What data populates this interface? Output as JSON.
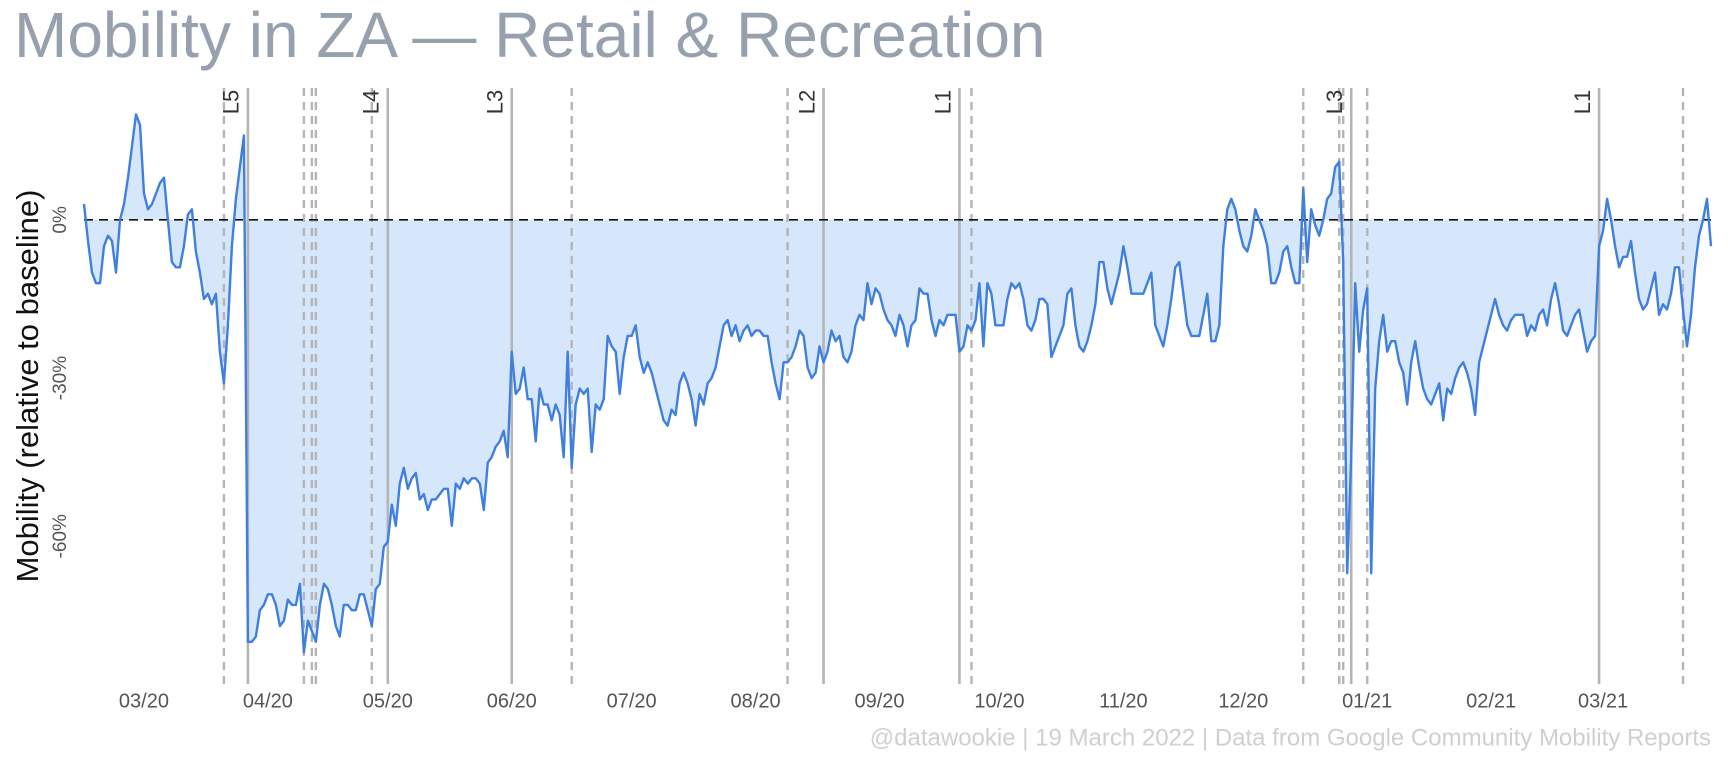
{
  "chart_data": {
    "type": "area-line",
    "title": "Mobility in ZA — Retail & Recreation",
    "ylabel": "Mobility (relative to baseline)",
    "footer": "@datawookie | 19 March 2022 | Data from Google Community Mobility Reports",
    "color": "#3f7fe0",
    "fill": "#d6e6fb",
    "xlim": [
      0,
      407
    ],
    "xticks": [
      {
        "value": 15,
        "label": "03/20"
      },
      {
        "value": 46,
        "label": "04/20"
      },
      {
        "value": 76,
        "label": "05/20"
      },
      {
        "value": 107,
        "label": "06/20"
      },
      {
        "value": 137,
        "label": "07/20"
      },
      {
        "value": 168,
        "label": "08/20"
      },
      {
        "value": 199,
        "label": "09/20"
      },
      {
        "value": 229,
        "label": "10/20"
      },
      {
        "value": 260,
        "label": "11/20"
      },
      {
        "value": 290,
        "label": "12/20"
      },
      {
        "value": 321,
        "label": "01/21"
      },
      {
        "value": 352,
        "label": "02/21"
      },
      {
        "value": 380,
        "label": "03/21"
      }
    ],
    "ylim": [
      -88,
      25
    ],
    "yticks": [
      {
        "value": -60,
        "label": "-60%"
      },
      {
        "value": -30,
        "label": "-30%"
      },
      {
        "value": 0,
        "label": "0%"
      }
    ],
    "baseline": 0,
    "level_changes": [
      {
        "x": 41,
        "label": "L5"
      },
      {
        "x": 76,
        "label": "L4"
      },
      {
        "x": 107,
        "label": "L3"
      },
      {
        "x": 185,
        "label": "L2"
      },
      {
        "x": 219,
        "label": "L1"
      },
      {
        "x": 317,
        "label": "L3"
      },
      {
        "x": 379,
        "label": "L1"
      }
    ],
    "dashed_lines": [
      35,
      55,
      57,
      58,
      72,
      122,
      176,
      222,
      305,
      314,
      315,
      321,
      400
    ],
    "x": [
      0,
      1,
      2,
      3,
      4,
      5,
      6,
      7,
      8,
      9,
      10,
      11,
      12,
      13,
      14,
      15,
      16,
      17,
      18,
      19,
      20,
      21,
      22,
      23,
      24,
      25,
      26,
      27,
      28,
      29,
      30,
      31,
      32,
      33,
      34,
      35,
      36,
      37,
      38,
      39,
      40,
      41,
      42,
      43,
      44,
      45,
      46,
      47,
      48,
      49,
      50,
      51,
      52,
      53,
      54,
      55,
      56,
      57,
      58,
      59,
      60,
      61,
      62,
      63,
      64,
      65,
      66,
      67,
      68,
      69,
      70,
      71,
      72,
      73,
      74,
      75,
      76,
      77,
      78,
      79,
      80,
      81,
      82,
      83,
      84,
      85,
      86,
      87,
      88,
      89,
      90,
      91,
      92,
      93,
      94,
      95,
      96,
      97,
      98,
      99,
      100,
      101,
      102,
      103,
      104,
      105,
      106,
      107,
      108,
      109,
      110,
      111,
      112,
      113,
      114,
      115,
      116,
      117,
      118,
      119,
      120,
      121,
      122,
      123,
      124,
      125,
      126,
      127,
      128,
      129,
      130,
      131,
      132,
      133,
      134,
      135,
      136,
      137,
      138,
      139,
      140,
      141,
      142,
      143,
      144,
      145,
      146,
      147,
      148,
      149,
      150,
      151,
      152,
      153,
      154,
      155,
      156,
      157,
      158,
      159,
      160,
      161,
      162,
      163,
      164,
      165,
      166,
      167,
      168,
      169,
      170,
      171,
      172,
      173,
      174,
      175,
      176,
      177,
      178,
      179,
      180,
      181,
      182,
      183,
      184,
      185,
      186,
      187,
      188,
      189,
      190,
      191,
      192,
      193,
      194,
      195,
      196,
      197,
      198,
      199,
      200,
      201,
      202,
      203,
      204,
      205,
      206,
      207,
      208,
      209,
      210,
      211,
      212,
      213,
      214,
      215,
      216,
      217,
      218,
      219,
      220,
      221,
      222,
      223,
      224,
      225,
      226,
      227,
      228,
      229,
      230,
      231,
      232,
      233,
      234,
      235,
      236,
      237,
      238,
      239,
      240,
      241,
      242,
      243,
      244,
      245,
      246,
      247,
      248,
      249,
      250,
      251,
      252,
      253,
      254,
      255,
      256,
      257,
      258,
      259,
      260,
      261,
      262,
      263,
      264,
      265,
      266,
      267,
      268,
      269,
      270,
      271,
      272,
      273,
      274,
      275,
      276,
      277,
      278,
      279,
      280,
      281,
      282,
      283,
      284,
      285,
      286,
      287,
      288,
      289,
      290,
      291,
      292,
      293,
      294,
      295,
      296,
      297,
      298,
      299,
      300,
      301,
      302,
      303,
      304,
      305,
      306,
      307,
      308,
      309,
      310,
      311,
      312,
      313,
      314,
      315,
      316,
      317,
      318,
      319,
      320,
      321,
      322,
      323,
      324,
      325,
      326,
      327,
      328,
      329,
      330,
      331,
      332,
      333,
      334,
      335,
      336,
      337,
      338,
      339,
      340,
      341,
      342,
      343,
      344,
      345,
      346,
      347,
      348,
      349,
      350,
      351,
      352,
      353,
      354,
      355,
      356,
      357,
      358,
      359,
      360,
      361,
      362,
      363,
      364,
      365,
      366,
      367,
      368,
      369,
      370,
      371,
      372,
      373,
      374,
      375,
      376,
      377,
      378,
      379,
      380,
      381,
      382,
      383,
      384,
      385,
      386,
      387,
      388,
      389,
      390,
      391,
      392,
      393,
      394,
      395,
      396,
      397,
      398,
      399,
      400,
      401,
      402,
      403,
      404,
      405,
      406,
      407
    ],
    "values": [
      3,
      -4,
      -10,
      -12,
      -12,
      -5,
      -3,
      -4,
      -10,
      0,
      3,
      8,
      14,
      20,
      18,
      5,
      2,
      3,
      5,
      7,
      8,
      0,
      -8,
      -9,
      -9,
      -5,
      1,
      2,
      -6,
      -10,
      -15,
      -14,
      -16,
      -14,
      -25,
      -31,
      -20,
      -5,
      4,
      10,
      16,
      -80,
      -80,
      -79,
      -74,
      -73,
      -71,
      -71,
      -73,
      -77,
      -76,
      -72,
      -73,
      -73,
      -69,
      -82,
      -76,
      -78,
      -80,
      -73,
      -69,
      -70,
      -73,
      -77,
      -79,
      -73,
      -73,
      -74,
      -74,
      -71,
      -71,
      -74,
      -77,
      -70,
      -69,
      -62,
      -61,
      -54,
      -58,
      -50,
      -47,
      -51,
      -49,
      -48,
      -53,
      -52,
      -55,
      -53,
      -53,
      -52,
      -51,
      -51,
      -58,
      -50,
      -51,
      -49,
      -50,
      -49,
      -49,
      -50,
      -55,
      -46,
      -45,
      -43,
      -42,
      -40,
      -45,
      -25,
      -33,
      -32,
      -28,
      -34,
      -34,
      -42,
      -32,
      -35,
      -35,
      -38,
      -35,
      -37,
      -45,
      -25,
      -47,
      -35,
      -32,
      -33,
      -32,
      -44,
      -35,
      -36,
      -34,
      -22,
      -24,
      -25,
      -33,
      -26,
      -22,
      -22,
      -20,
      -26,
      -29,
      -27,
      -29,
      -32,
      -35,
      -38,
      -39,
      -36,
      -37,
      -31,
      -29,
      -31,
      -34,
      -39,
      -33,
      -35,
      -31,
      -30,
      -28,
      -24,
      -20,
      -19,
      -22,
      -20,
      -23,
      -21,
      -20,
      -22,
      -21,
      -21,
      -22,
      -22,
      -27,
      -31,
      -34,
      -27,
      -27,
      -26,
      -24,
      -21,
      -22,
      -28,
      -30,
      -29,
      -24,
      -27,
      -25,
      -21,
      -23,
      -22,
      -26,
      -27,
      -25,
      -20,
      -18,
      -19,
      -12,
      -16,
      -13,
      -14,
      -17,
      -19,
      -20,
      -22,
      -18,
      -20,
      -24,
      -20,
      -19,
      -13,
      -14,
      -14,
      -19,
      -22,
      -19,
      -20,
      -18,
      -18,
      -18,
      -25,
      -24,
      -20,
      -21,
      -19,
      -12,
      -24,
      -12,
      -14,
      -20,
      -20,
      -20,
      -15,
      -12,
      -13,
      -12,
      -15,
      -20,
      -21,
      -19,
      -15,
      -15,
      -16,
      -26,
      -24,
      -22,
      -20,
      -14,
      -13,
      -20,
      -24,
      -25,
      -23,
      -20,
      -16,
      -8,
      -8,
      -13,
      -16,
      -13,
      -10,
      -5,
      -9,
      -14,
      -14,
      -14,
      -14,
      -12,
      -10,
      -20,
      -22,
      -24,
      -20,
      -15,
      -9,
      -8,
      -14,
      -20,
      -22,
      -22,
      -22,
      -18,
      -14,
      -23,
      -23,
      -20,
      -5,
      2,
      4,
      2,
      -2,
      -5,
      -6,
      -3,
      2,
      0,
      -2,
      -5,
      -12,
      -12,
      -10,
      -6,
      -5,
      -9,
      -12,
      -12,
      6,
      -8,
      2,
      -1,
      -3,
      0,
      4,
      5,
      10,
      11,
      -8,
      -67,
      -45,
      -12,
      -25,
      -17,
      -13,
      -67,
      -32,
      -23,
      -18,
      -25,
      -23,
      -23,
      -27,
      -29,
      -35,
      -27,
      -23,
      -28,
      -32,
      -34,
      -35,
      -33,
      -31,
      -38,
      -32,
      -33,
      -30,
      -28,
      -27,
      -29,
      -32,
      -37,
      -27,
      -24,
      -21,
      -18,
      -15,
      -18,
      -20,
      -21,
      -19,
      -18,
      -18,
      -18,
      -22,
      -20,
      -21,
      -18,
      -17,
      -20,
      -15,
      -12,
      -16,
      -21,
      -22,
      -20,
      -18,
      -17,
      -21,
      -25,
      -23,
      -22,
      -5,
      -2,
      4,
      0,
      -5,
      -9,
      -7,
      -7,
      -4,
      -10,
      -15,
      -17,
      -16,
      -13,
      -10,
      -18,
      -16,
      -17,
      -14,
      -9,
      -9,
      -17,
      -24,
      -18,
      -9,
      -3,
      0,
      4,
      -5
    ]
  }
}
